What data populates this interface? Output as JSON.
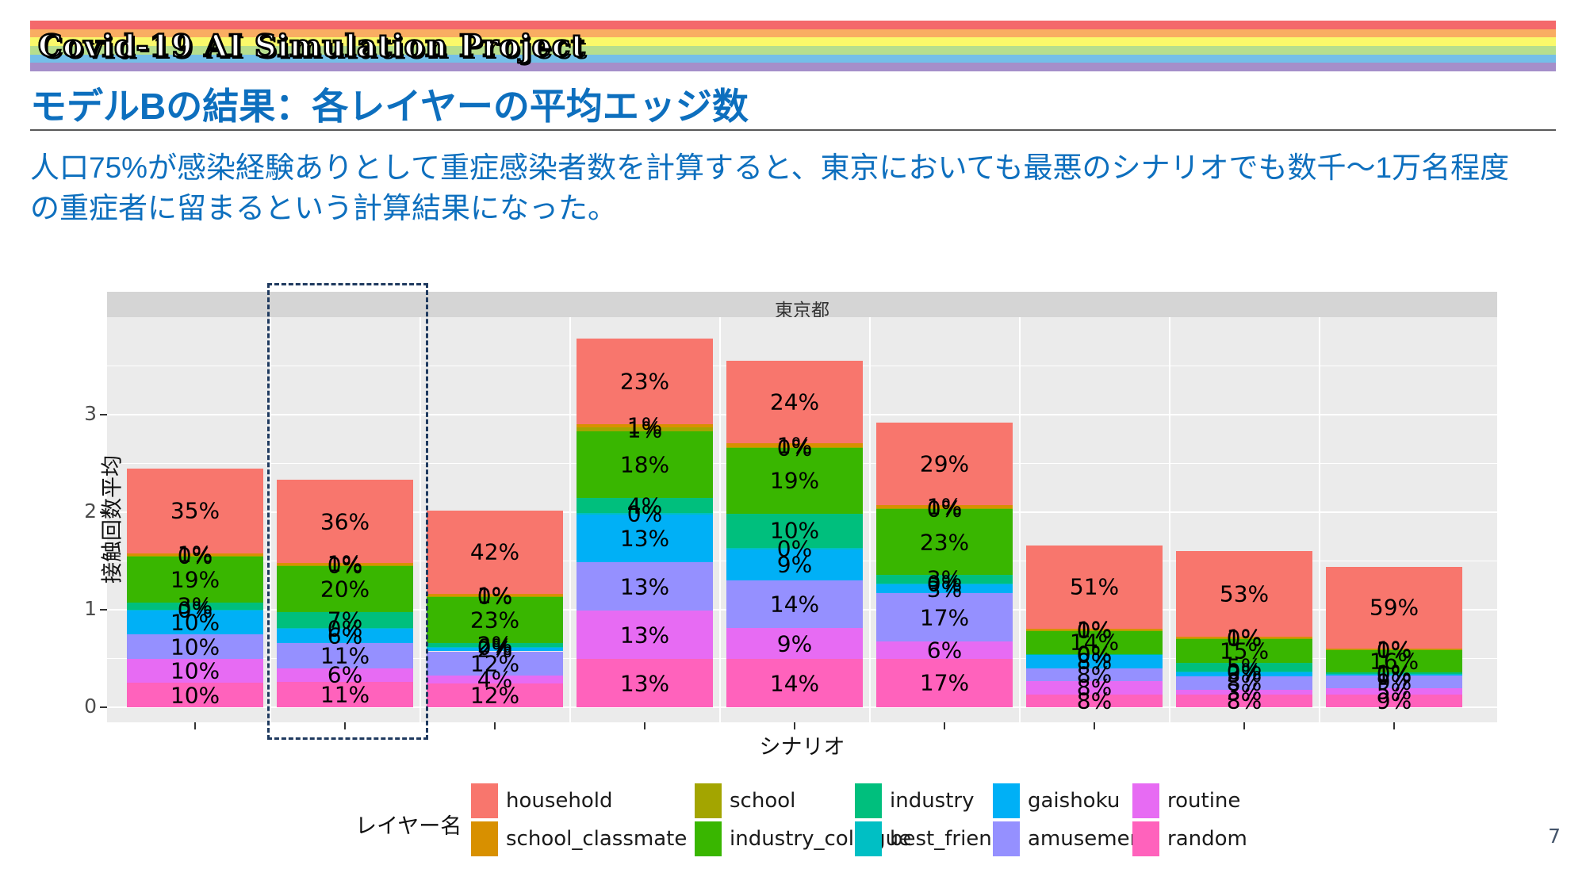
{
  "banner": {
    "logo_text": "Covid-19 AI Simulation Project",
    "stripe_colors": [
      "#f4696b",
      "#f9ad62",
      "#faf96a",
      "#b6de8d",
      "#74bfe8",
      "#a58fca"
    ]
  },
  "slide": {
    "title": "モデルBの結果：各レイヤーの平均エッジ数",
    "body_lines": [
      "人口75%が感染経験ありとして重症感染者数を計算すると、東京においても最悪のシナリオでも数千〜1万名程度",
      "の重症者に留まるという計算結果になった。"
    ],
    "page_number": "7",
    "title_color": "#0d6fbe"
  },
  "chart_data": {
    "type": "bar",
    "stacked": true,
    "facet_title": "東京都",
    "xlabel": "シナリオ",
    "ylabel": "接触回数平均",
    "y_ticks": [
      0,
      1,
      2,
      3
    ],
    "ylim": [
      0,
      4.1
    ],
    "grid": true,
    "n_scenarios": 9,
    "bar_totals_units": [
      2.45,
      2.33,
      2.02,
      3.78,
      3.55,
      2.92,
      1.66,
      1.6,
      1.44
    ],
    "highlighted_scenario_index": 2,
    "highlight_box_color": "#1f3a5f",
    "stack_order_bottom_to_top": [
      "random",
      "routine",
      "amusement",
      "gaishoku",
      "best_friend",
      "industry",
      "industry_collegue",
      "school",
      "school_classmate",
      "household"
    ],
    "layer_colors": {
      "household": "#f8766d",
      "school_classmate": "#d89000",
      "school": "#a3a500",
      "industry_collegue": "#39b600",
      "industry": "#00bf7d",
      "best_friend": "#00bfc4",
      "gaishoku": "#00b0f6",
      "amusement": "#9590ff",
      "routine": "#e76bf3",
      "random": "#ff62bc"
    },
    "series": [
      {
        "name": "household",
        "values": [
          35,
          36,
          42,
          23,
          24,
          29,
          51,
          53,
          59
        ]
      },
      {
        "name": "school_classmate",
        "values": [
          1,
          1,
          1,
          1,
          1,
          1,
          1,
          1,
          1
        ]
      },
      {
        "name": "school",
        "values": [
          0,
          0,
          0,
          1,
          0,
          0,
          0,
          0,
          0
        ]
      },
      {
        "name": "industry_collegue",
        "values": [
          19,
          20,
          23,
          18,
          19,
          23,
          14,
          15,
          16
        ]
      },
      {
        "name": "industry",
        "values": [
          3,
          7,
          2,
          4,
          10,
          3,
          0,
          5,
          1
        ]
      },
      {
        "name": "best_friend",
        "values": [
          0,
          0,
          0,
          0,
          0,
          0,
          0,
          0,
          0
        ]
      },
      {
        "name": "gaishoku",
        "values": [
          10,
          6,
          2,
          13,
          9,
          3,
          8,
          3,
          1
        ]
      },
      {
        "name": "amusement",
        "values": [
          10,
          11,
          12,
          13,
          14,
          17,
          8,
          8,
          9
        ]
      },
      {
        "name": "routine",
        "values": [
          10,
          6,
          4,
          13,
          9,
          6,
          8,
          3,
          5
        ]
      },
      {
        "name": "random",
        "values": [
          10,
          11,
          12,
          13,
          14,
          17,
          8,
          8,
          9
        ]
      }
    ],
    "legend_title": "レイヤー名",
    "legend_columns": [
      [
        "household",
        "school_classmate"
      ],
      [
        "school",
        "industry_collegue"
      ],
      [
        "industry",
        "best_friend"
      ],
      [
        "gaishoku",
        "amusement"
      ],
      [
        "routine",
        "random"
      ]
    ]
  }
}
